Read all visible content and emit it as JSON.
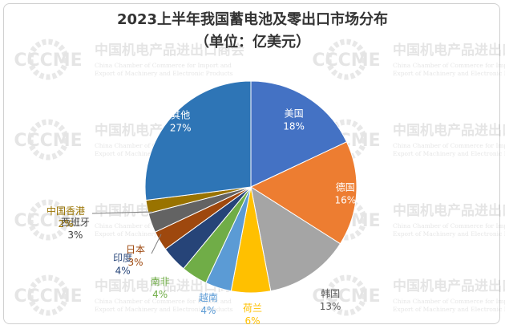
{
  "title_line1": "2023上半年我国蓄电池及零出口市场分布",
  "title_line2": "（单位：亿美元）",
  "watermark": {
    "logo_text": "CCCME",
    "org_cn": "中国机电产品进出口商会",
    "org_en_line1": "China Chamber of Commerce for Import and",
    "org_en_line2": "Export of Machinery and Electronic Products"
  },
  "chart_data": {
    "type": "pie",
    "title": "2023上半年我国蓄电池及零出口市场分布",
    "subtitle": "（单位：亿美元）",
    "start_angle_deg": 0,
    "direction": "clockwise",
    "slices": [
      {
        "name": "美国",
        "percent_label": "18%",
        "value": 18,
        "color": "#4472C4"
      },
      {
        "name": "德国",
        "percent_label": "16%",
        "value": 16,
        "color": "#ED7D31"
      },
      {
        "name": "韩国",
        "percent_label": "13%",
        "value": 13,
        "color": "#A5A5A5"
      },
      {
        "name": "荷兰",
        "percent_label": "6%",
        "value": 6,
        "color": "#FFC000"
      },
      {
        "name": "越南",
        "percent_label": "4%",
        "value": 4,
        "color": "#5B9BD5"
      },
      {
        "name": "南非",
        "percent_label": "4%",
        "value": 4,
        "color": "#70AD47"
      },
      {
        "name": "印度",
        "percent_label": "4%",
        "value": 4,
        "color": "#264478"
      },
      {
        "name": "日本",
        "percent_label": "3%",
        "value": 3,
        "color": "#9E480E"
      },
      {
        "name": "西班牙",
        "percent_label": "3%",
        "value": 3,
        "color": "#636363"
      },
      {
        "name": "中国香港",
        "percent_label": "2%",
        "value": 2,
        "color": "#997300"
      },
      {
        "name": "其他",
        "percent_label": "27%",
        "value": 27,
        "color": "#2E75B6"
      }
    ]
  }
}
